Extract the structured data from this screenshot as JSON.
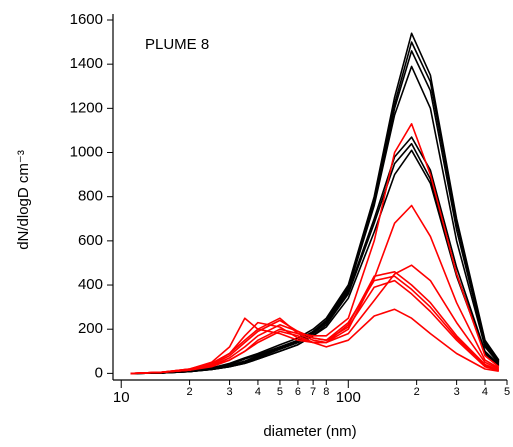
{
  "chart_data": {
    "type": "line",
    "annotation": "PLUME 8",
    "x_label": "diameter (nm)",
    "y_label": "dN/dlogD cm⁻³",
    "xscale": "log",
    "xlim": [
      9.2,
      500
    ],
    "ylim": [
      -30,
      1600
    ],
    "xticks": [
      10,
      {
        "value": 20,
        "label": "2"
      },
      {
        "value": 30,
        "label": "3"
      },
      {
        "value": 40,
        "label": "4"
      },
      {
        "value": 50,
        "label": "5"
      },
      {
        "value": 60,
        "label": "6"
      },
      {
        "value": 70,
        "label": "7"
      },
      {
        "value": 80,
        "label": "8"
      },
      100,
      {
        "value": 200,
        "label": "2"
      },
      {
        "value": 300,
        "label": "3"
      },
      {
        "value": 400,
        "label": "4"
      },
      {
        "value": 500,
        "label": "5"
      }
    ],
    "yticks": [
      0,
      200,
      400,
      600,
      800,
      1000,
      1200,
      1400,
      1600
    ],
    "x": [
      11,
      15,
      20,
      25,
      30,
      35,
      40,
      50,
      60,
      70,
      80,
      100,
      130,
      160,
      190,
      230,
      300,
      400,
      460
    ],
    "series": [
      {
        "color": "#000000",
        "values": [
          0,
          2,
          10,
          25,
          45,
          70,
          90,
          130,
          160,
          200,
          250,
          400,
          800,
          1250,
          1540,
          1350,
          700,
          150,
          60
        ]
      },
      {
        "color": "#000000",
        "values": [
          0,
          2,
          10,
          25,
          40,
          65,
          85,
          120,
          150,
          190,
          240,
          390,
          780,
          1220,
          1500,
          1320,
          680,
          140,
          55
        ]
      },
      {
        "color": "#000000",
        "values": [
          0,
          2,
          8,
          20,
          35,
          55,
          80,
          115,
          145,
          185,
          235,
          380,
          770,
          1200,
          1460,
          1280,
          650,
          130,
          50
        ]
      },
      {
        "color": "#000000",
        "values": [
          0,
          2,
          8,
          20,
          35,
          55,
          75,
          110,
          140,
          180,
          230,
          380,
          760,
          1170,
          1390,
          1200,
          600,
          120,
          45
        ]
      },
      {
        "color": "#000000",
        "values": [
          0,
          2,
          8,
          18,
          30,
          50,
          70,
          110,
          140,
          180,
          230,
          370,
          700,
          980,
          1070,
          920,
          480,
          100,
          40
        ]
      },
      {
        "color": "#000000",
        "values": [
          0,
          2,
          8,
          18,
          30,
          45,
          65,
          100,
          130,
          170,
          220,
          360,
          680,
          950,
          1040,
          880,
          450,
          90,
          35
        ]
      },
      {
        "color": "#000000",
        "values": [
          0,
          2,
          8,
          18,
          30,
          45,
          65,
          100,
          130,
          170,
          210,
          340,
          640,
          900,
          1010,
          860,
          440,
          90,
          35
        ]
      },
      {
        "color": "#ff0000",
        "values": [
          0,
          5,
          15,
          35,
          60,
          100,
          150,
          200,
          180,
          170,
          170,
          250,
          600,
          1000,
          1130,
          900,
          450,
          80,
          30
        ]
      },
      {
        "color": "#ff0000",
        "values": [
          0,
          5,
          20,
          45,
          90,
          170,
          230,
          210,
          160,
          140,
          140,
          200,
          430,
          680,
          760,
          620,
          320,
          60,
          25
        ]
      },
      {
        "color": "#ff0000",
        "values": [
          0,
          5,
          20,
          50,
          120,
          250,
          200,
          180,
          150,
          140,
          140,
          180,
          330,
          450,
          490,
          420,
          230,
          50,
          20
        ]
      },
      {
        "color": "#ff0000",
        "values": [
          0,
          5,
          20,
          45,
          90,
          150,
          200,
          250,
          180,
          150,
          140,
          220,
          440,
          460,
          400,
          320,
          170,
          40,
          15
        ]
      },
      {
        "color": "#ff0000",
        "values": [
          0,
          5,
          15,
          40,
          80,
          140,
          190,
          240,
          190,
          160,
          150,
          230,
          420,
          440,
          380,
          300,
          160,
          35,
          15
        ]
      },
      {
        "color": "#ff0000",
        "values": [
          0,
          5,
          15,
          35,
          70,
          120,
          170,
          220,
          190,
          160,
          150,
          210,
          390,
          420,
          360,
          280,
          150,
          30,
          12
        ]
      },
      {
        "color": "#ff0000",
        "values": [
          0,
          5,
          15,
          30,
          60,
          100,
          140,
          190,
          170,
          140,
          120,
          150,
          260,
          290,
          250,
          180,
          90,
          20,
          10
        ]
      }
    ]
  }
}
